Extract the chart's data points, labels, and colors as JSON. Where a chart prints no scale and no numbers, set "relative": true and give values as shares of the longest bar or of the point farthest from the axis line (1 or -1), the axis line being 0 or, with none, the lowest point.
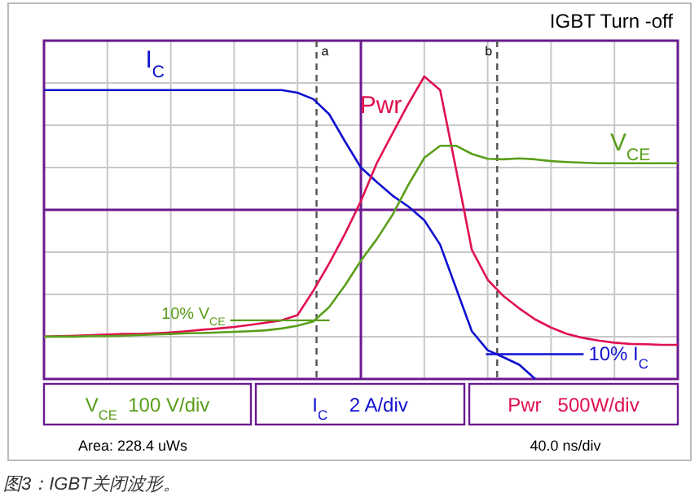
{
  "chart_data": {
    "type": "line",
    "title": "IGBT Turn -off",
    "relative": true,
    "grid": true,
    "legend": false,
    "categories": [
      null,
      null,
      null,
      null,
      null,
      null,
      null,
      null,
      null,
      null,
      null,
      null,
      null,
      null,
      null,
      null,
      null,
      null,
      null,
      null,
      null,
      null,
      null,
      null,
      null,
      null,
      null,
      null,
      null,
      null,
      null,
      null,
      null,
      null,
      null,
      null,
      null,
      null,
      null,
      null,
      null
    ],
    "series": [
      {
        "name": "I$_{C}$",
        "color": "#1010d0",
        "values": [
          0.955,
          0.955,
          0.955,
          0.955,
          0.955,
          0.955,
          0.955,
          0.955,
          0.955,
          0.955,
          0.955,
          0.955,
          0.955,
          0.955,
          0.955,
          0.955,
          0.946,
          0.925,
          0.875,
          0.785,
          0.699,
          0.651,
          0.606,
          0.57,
          0.525,
          0.444,
          0.301,
          0.158,
          0.095,
          0.072,
          0.047,
          0,
          null,
          null,
          null,
          null,
          null,
          null,
          null,
          null,
          null
        ]
      },
      {
        "name": "Pwr",
        "color": "#e0104f",
        "values": [
          0.14,
          0.142,
          0.143,
          0.145,
          0.147,
          0.149,
          0.149,
          0.151,
          0.154,
          0.158,
          0.163,
          0.167,
          0.172,
          0.179,
          0.186,
          0.194,
          0.211,
          0.292,
          0.382,
          0.48,
          0.588,
          0.713,
          0.812,
          0.91,
          1.0,
          0.955,
          0.695,
          0.427,
          0.328,
          0.274,
          0.233,
          0.197,
          0.17,
          0.149,
          0.136,
          0.127,
          0.12,
          0.116,
          0.115,
          0.113,
          0.113
        ]
      },
      {
        "name": "V$_{CE}$",
        "color": "#5a9e1a",
        "values": [
          0.14,
          0.14,
          0.14,
          0.142,
          0.142,
          0.143,
          0.145,
          0.147,
          0.149,
          0.151,
          0.152,
          0.154,
          0.156,
          0.158,
          0.161,
          0.167,
          0.176,
          0.19,
          0.238,
          0.31,
          0.391,
          0.462,
          0.543,
          0.642,
          0.731,
          0.771,
          0.771,
          0.744,
          0.728,
          0.726,
          0.729,
          0.726,
          0.72,
          0.717,
          0.715,
          0.713,
          0.713,
          0.713,
          0.713,
          0.713,
          0.713
        ]
      }
    ],
    "ref_lines": [
      {
        "axis": "y",
        "value": 0.559,
        "color": "#6a1a8e",
        "line_style": "solid"
      }
    ],
    "annotations": [
      "10% V$_{CE}$",
      "10% I$_{C}$",
      "V$_{CE}$  100 V/div",
      "I$_{C}$    2 A/div",
      "Pwr   500W/div",
      "Area:  228.4 uWs",
      "40.0 ns/div",
      "图3：IGBT关闭波形。",
      "a",
      "b"
    ]
  }
}
